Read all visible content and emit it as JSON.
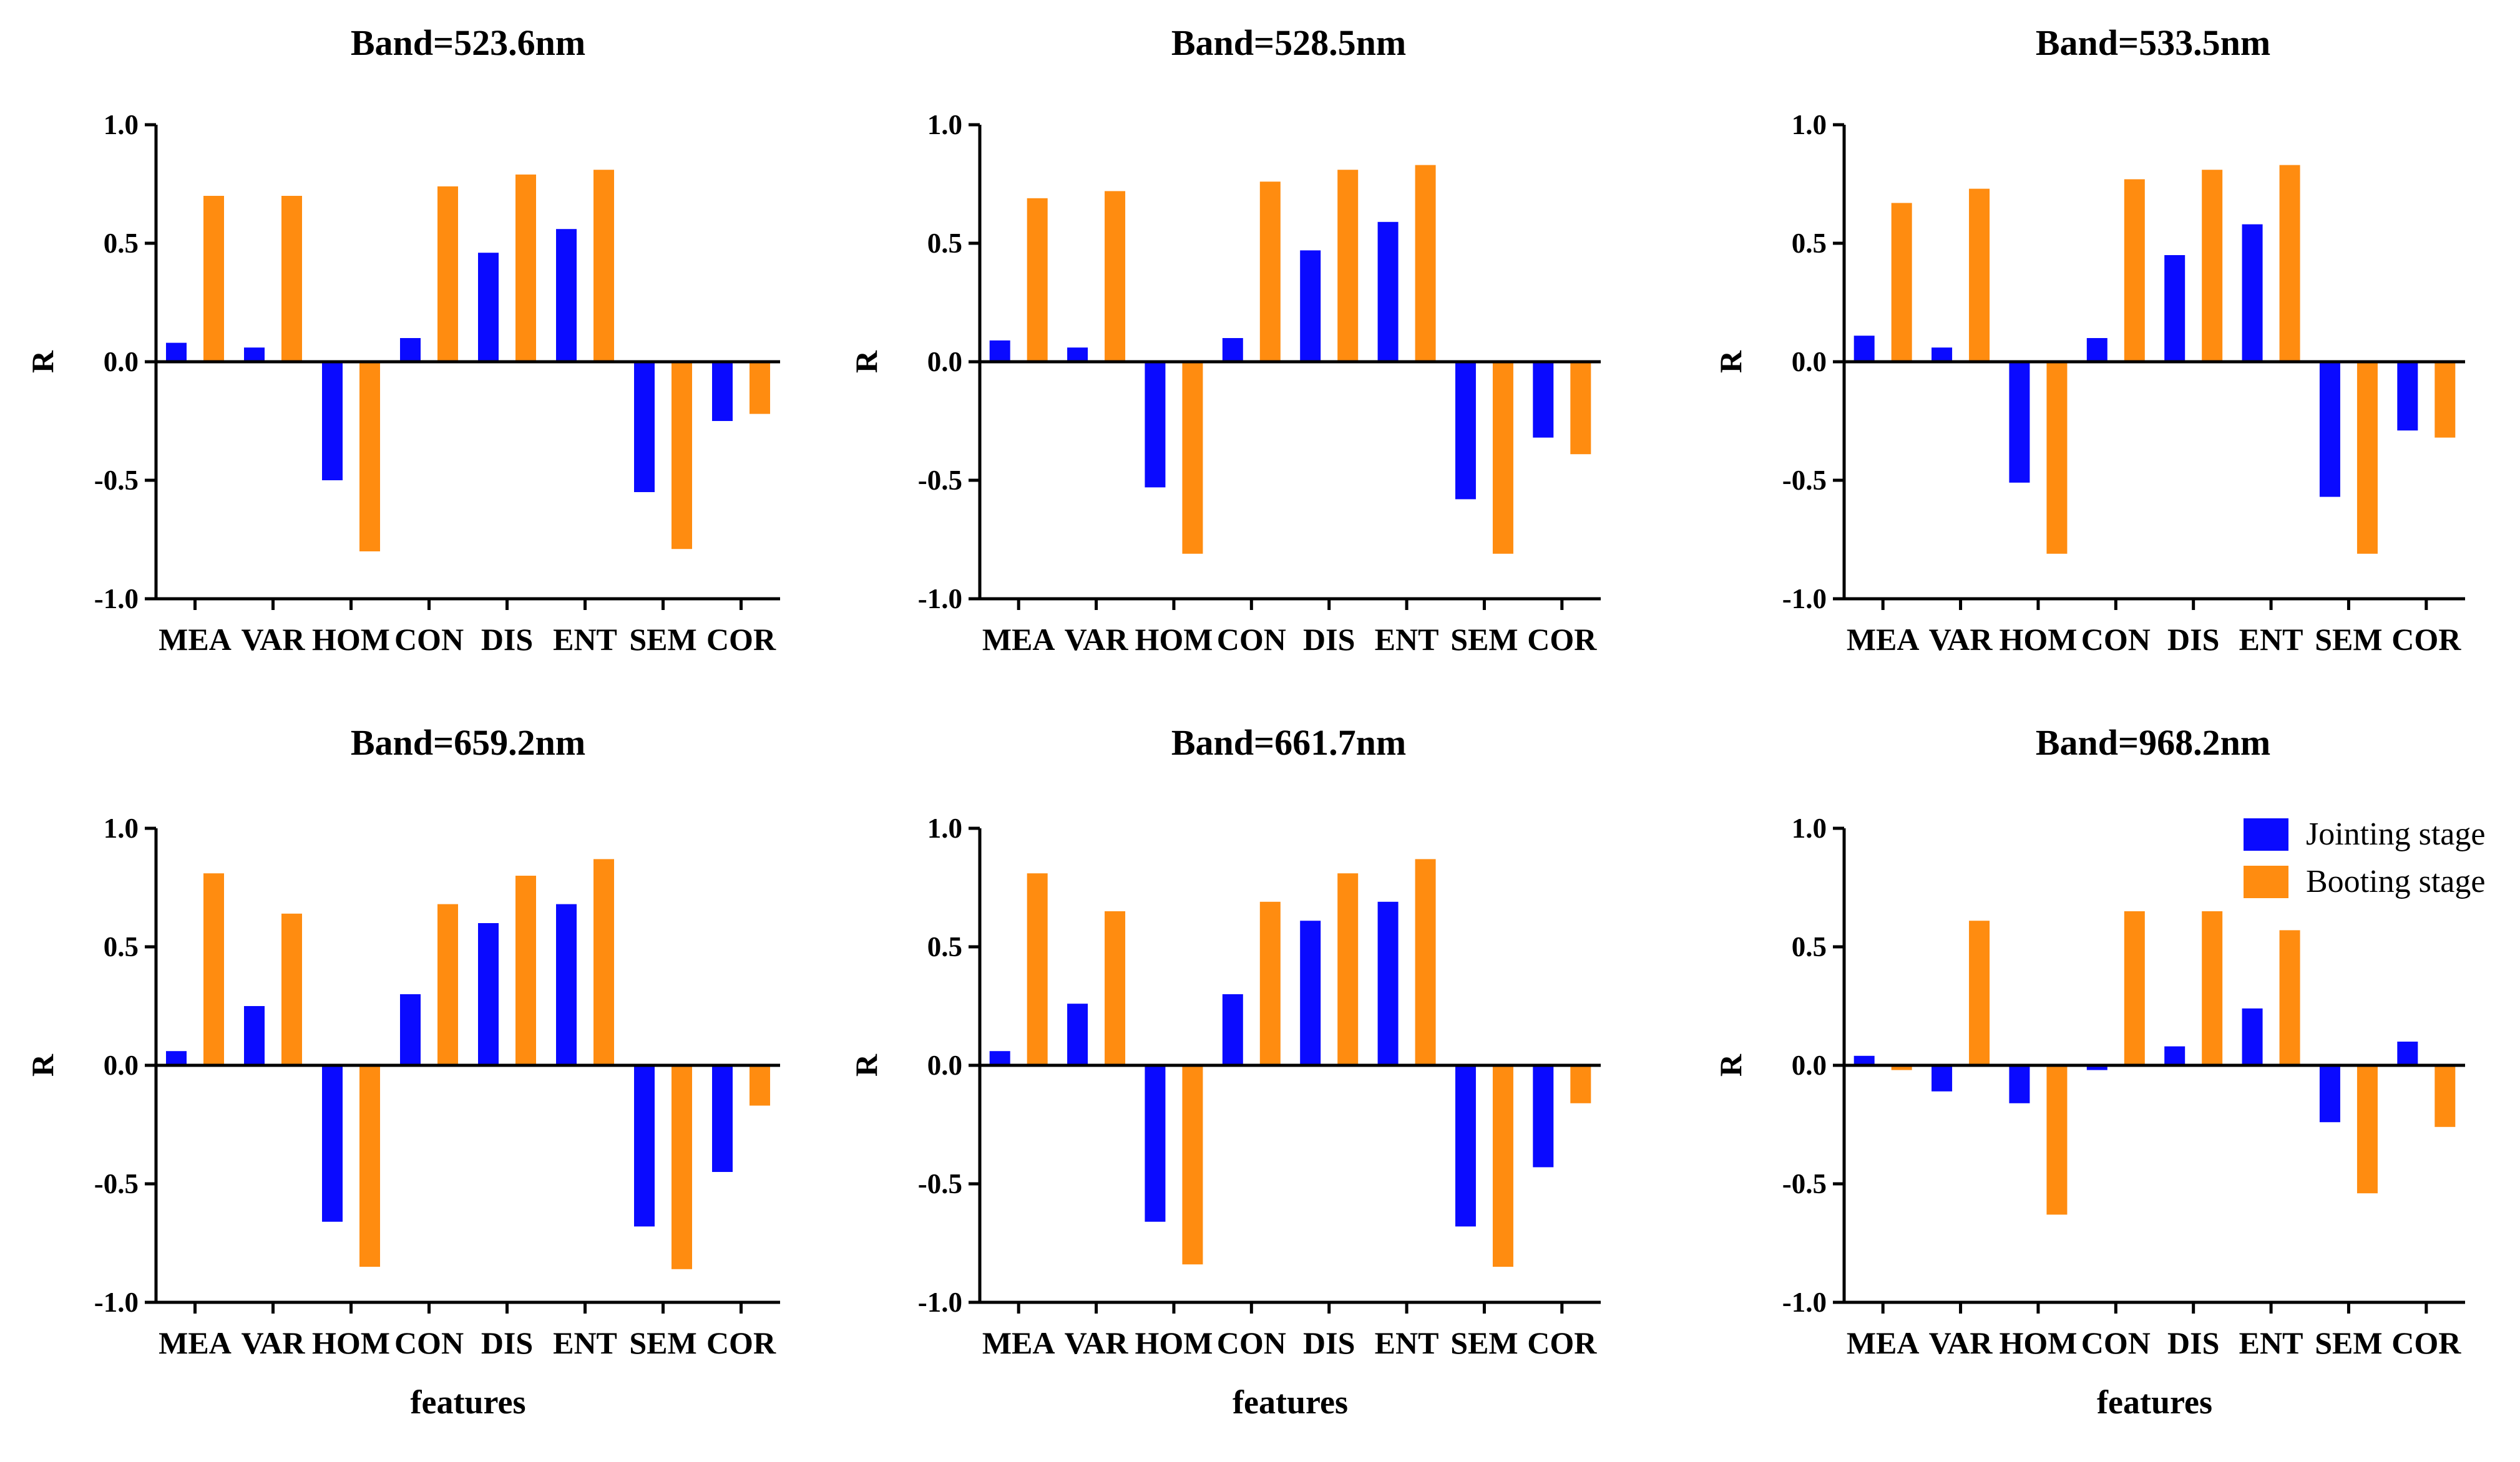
{
  "figure": {
    "ylabel": "R",
    "xlabel": "features"
  },
  "legend": {
    "items": [
      {
        "label": "Jointing stage",
        "color": "#0a0aff"
      },
      {
        "label": "Booting stage",
        "color": "#ff8c10"
      }
    ]
  },
  "chart_data": [
    {
      "type": "bar",
      "title": "Band=523.6nm",
      "ylabel": "R",
      "xlabel": "",
      "ylim": [
        -1.0,
        1.0
      ],
      "yticks": [
        "1.0",
        "0.5",
        "0.0",
        "-0.5",
        "-1.0"
      ],
      "categories": [
        "MEA",
        "VAR",
        "HOM",
        "CON",
        "DIS",
        "ENT",
        "SEM",
        "COR"
      ],
      "series": [
        {
          "name": "Jointing stage",
          "values": [
            0.08,
            0.06,
            -0.5,
            0.1,
            0.46,
            0.56,
            -0.55,
            -0.25
          ]
        },
        {
          "name": "Booting stage",
          "values": [
            0.7,
            0.7,
            -0.8,
            0.74,
            0.79,
            0.81,
            -0.79,
            -0.22
          ]
        }
      ]
    },
    {
      "type": "bar",
      "title": "Band=528.5nm",
      "ylabel": "R",
      "xlabel": "",
      "ylim": [
        -1.0,
        1.0
      ],
      "yticks": [
        "1.0",
        "0.5",
        "0.0",
        "-0.5",
        "-1.0"
      ],
      "categories": [
        "MEA",
        "VAR",
        "HOM",
        "CON",
        "DIS",
        "ENT",
        "SEM",
        "COR"
      ],
      "series": [
        {
          "name": "Jointing stage",
          "values": [
            0.09,
            0.06,
            -0.53,
            0.1,
            0.47,
            0.59,
            -0.58,
            -0.32
          ]
        },
        {
          "name": "Booting stage",
          "values": [
            0.69,
            0.72,
            -0.81,
            0.76,
            0.81,
            0.83,
            -0.81,
            -0.39
          ]
        }
      ]
    },
    {
      "type": "bar",
      "title": "Band=533.5nm",
      "ylabel": "R",
      "xlabel": "",
      "ylim": [
        -1.0,
        1.0
      ],
      "yticks": [
        "1.0",
        "0.5",
        "0.0",
        "-0.5",
        "-1.0"
      ],
      "categories": [
        "MEA",
        "VAR",
        "HOM",
        "CON",
        "DIS",
        "ENT",
        "SEM",
        "COR"
      ],
      "series": [
        {
          "name": "Jointing stage",
          "values": [
            0.11,
            0.06,
            -0.51,
            0.1,
            0.45,
            0.58,
            -0.57,
            -0.29
          ]
        },
        {
          "name": "Booting stage",
          "values": [
            0.67,
            0.73,
            -0.81,
            0.77,
            0.81,
            0.83,
            -0.81,
            -0.32
          ]
        }
      ]
    },
    {
      "type": "bar",
      "title": "Band=659.2nm",
      "ylabel": "R",
      "xlabel": "features",
      "ylim": [
        -1.0,
        1.0
      ],
      "yticks": [
        "1.0",
        "0.5",
        "0.0",
        "-0.5",
        "-1.0"
      ],
      "categories": [
        "MEA",
        "VAR",
        "HOM",
        "CON",
        "DIS",
        "ENT",
        "SEM",
        "COR"
      ],
      "series": [
        {
          "name": "Jointing stage",
          "values": [
            0.06,
            0.25,
            -0.66,
            0.3,
            0.6,
            0.68,
            -0.68,
            -0.45
          ]
        },
        {
          "name": "Booting stage",
          "values": [
            0.81,
            0.64,
            -0.85,
            0.68,
            0.8,
            0.87,
            -0.86,
            -0.17
          ]
        }
      ]
    },
    {
      "type": "bar",
      "title": "Band=661.7nm",
      "ylabel": "R",
      "xlabel": "features",
      "ylim": [
        -1.0,
        1.0
      ],
      "yticks": [
        "1.0",
        "0.5",
        "0.0",
        "-0.5",
        "-1.0"
      ],
      "categories": [
        "MEA",
        "VAR",
        "HOM",
        "CON",
        "DIS",
        "ENT",
        "SEM",
        "COR"
      ],
      "series": [
        {
          "name": "Jointing stage",
          "values": [
            0.06,
            0.26,
            -0.66,
            0.3,
            0.61,
            0.69,
            -0.68,
            -0.43
          ]
        },
        {
          "name": "Booting stage",
          "values": [
            0.81,
            0.65,
            -0.84,
            0.69,
            0.81,
            0.87,
            -0.85,
            -0.16
          ]
        }
      ]
    },
    {
      "type": "bar",
      "title": "Band=968.2nm",
      "ylabel": "R",
      "xlabel": "features",
      "ylim": [
        -1.0,
        1.0
      ],
      "yticks": [
        "1.0",
        "0.5",
        "0.0",
        "-0.5",
        "-1.0"
      ],
      "categories": [
        "MEA",
        "VAR",
        "HOM",
        "CON",
        "DIS",
        "ENT",
        "SEM",
        "COR"
      ],
      "series": [
        {
          "name": "Jointing stage",
          "values": [
            0.04,
            -0.11,
            -0.16,
            -0.02,
            0.08,
            0.24,
            -0.24,
            0.1
          ]
        },
        {
          "name": "Booting stage",
          "values": [
            -0.02,
            0.61,
            -0.63,
            0.65,
            0.65,
            0.57,
            -0.54,
            -0.26
          ]
        }
      ],
      "legend": "top-right"
    }
  ]
}
